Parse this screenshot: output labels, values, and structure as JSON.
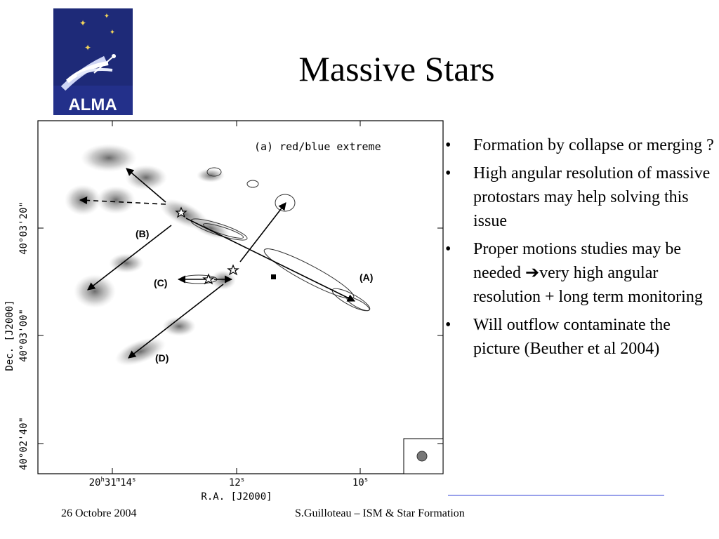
{
  "logo": {
    "text": "ALMA",
    "background": "#1e2a78"
  },
  "slide": {
    "title": "Massive Stars"
  },
  "figure": {
    "panel_label": "(a) red/blue extreme",
    "y_axis_label": "Dec. [J2000]",
    "x_axis_label": "R.A. [J2000]",
    "y_ticks": [
      "40°03'20\"",
      "40°03'00\"",
      "40°02'40\""
    ],
    "x_ticks": [
      "20h31m14s",
      "12s",
      "10s"
    ],
    "x_tick_parts": [
      {
        "a": "20",
        "b": "h",
        "c": "31",
        "d": "m",
        "e": "14",
        "f": "s"
      },
      {
        "a": "12",
        "f": "s"
      },
      {
        "a": "10",
        "f": "s"
      }
    ],
    "outflow_labels": [
      "(A)",
      "(B)",
      "(C)",
      "(D)"
    ]
  },
  "bullets": [
    {
      "text": "Formation by collapse or merging ?"
    },
    {
      "text": "High angular resolution of massive protostars may help solving this issue"
    },
    {
      "text_before": "Proper motions studies may be needed ",
      "arrow": "➔",
      "text_after": "very high angular resolution + long term monitoring"
    },
    {
      "text": "Will outflow contaminate the picture (Beuther et al 2004)"
    }
  ],
  "footer": {
    "date": "26 Octobre 2004",
    "author": "S.Guilloteau – ISM & Star Formation"
  },
  "colors": {
    "rule": "#2b3bd6"
  }
}
